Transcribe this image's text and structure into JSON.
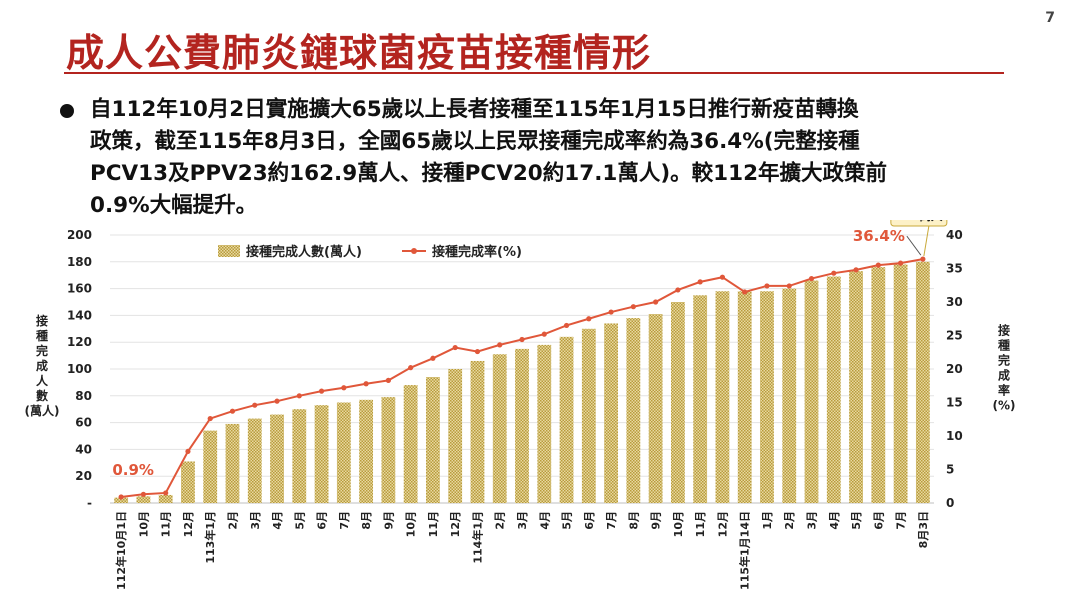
{
  "page": {
    "number": "7"
  },
  "slide": {
    "title": "成人公費肺炎鏈球菌疫苗接種情形",
    "bullet_lines": [
      "自112年10月2日實施擴大65歲以上長者接種至115年1月15日推行新疫苗轉換",
      "政策，截至115年8月3日，全國65歲以上民眾接種完成率約為36.4%(完整接種",
      "PCV13及PPV23約162.9萬人、接種PCV20約17.1萬人)。較112年擴大政策前",
      "0.9%大幅提升。"
    ]
  },
  "chart_data": {
    "type": "bar+line",
    "categories": [
      "112年10月1日",
      "10月",
      "11月",
      "12月",
      "113年1月",
      "2月",
      "3月",
      "4月",
      "5月",
      "6月",
      "7月",
      "8月",
      "9月",
      "10月",
      "11月",
      "12月",
      "114年1月",
      "2月",
      "3月",
      "4月",
      "5月",
      "6月",
      "7月",
      "8月",
      "9月",
      "10月",
      "11月",
      "12月",
      "115年1月14日",
      "1月",
      "2月",
      "3月",
      "4月",
      "5月",
      "6月",
      "7月",
      "8月3日"
    ],
    "series": [
      {
        "name": "接種完成人數(萬人)",
        "type": "bar",
        "axis": "left",
        "values": [
          4,
          5,
          6,
          31,
          54,
          59,
          63,
          66,
          70,
          73,
          75,
          77,
          79,
          88,
          94,
          100,
          106,
          111,
          115,
          118,
          124,
          130,
          134,
          138,
          141,
          150,
          155,
          158,
          158,
          158,
          160,
          166,
          169,
          173,
          176,
          178,
          180
        ]
      },
      {
        "name": "接種完成率(%)",
        "type": "line",
        "axis": "right",
        "values": [
          0.9,
          1.3,
          1.5,
          7.7,
          12.6,
          13.7,
          14.6,
          15.2,
          16.0,
          16.7,
          17.2,
          17.8,
          18.3,
          20.2,
          21.6,
          23.2,
          22.6,
          23.6,
          24.4,
          25.2,
          26.5,
          27.5,
          28.5,
          29.3,
          30.0,
          31.8,
          33.0,
          33.7,
          31.5,
          32.4,
          32.4,
          33.5,
          34.3,
          34.8,
          35.5,
          35.8,
          36.4
        ]
      }
    ],
    "y_left": {
      "label": "接種完成人數(萬人)",
      "min": 0,
      "max": 200,
      "ticks": [
        "-",
        "20",
        "40",
        "60",
        "80",
        "100",
        "120",
        "140",
        "160",
        "180",
        "200"
      ]
    },
    "y_right": {
      "label": "接種完成率(%)",
      "min": 0,
      "max": 40,
      "ticks": [
        "0",
        "5",
        "10",
        "15",
        "20",
        "25",
        "30",
        "35",
        "40"
      ]
    },
    "annotations": {
      "first_rate": "0.9%",
      "last_rate": "36.4%",
      "last_count": "180萬人"
    },
    "legend": "top-left",
    "grid": true,
    "colors": {
      "bar": "#d8c47a",
      "bar_pattern": "#b89b3c",
      "line": "#e0573a",
      "rate_label": "#e0573a",
      "title": "#b3241f"
    }
  }
}
